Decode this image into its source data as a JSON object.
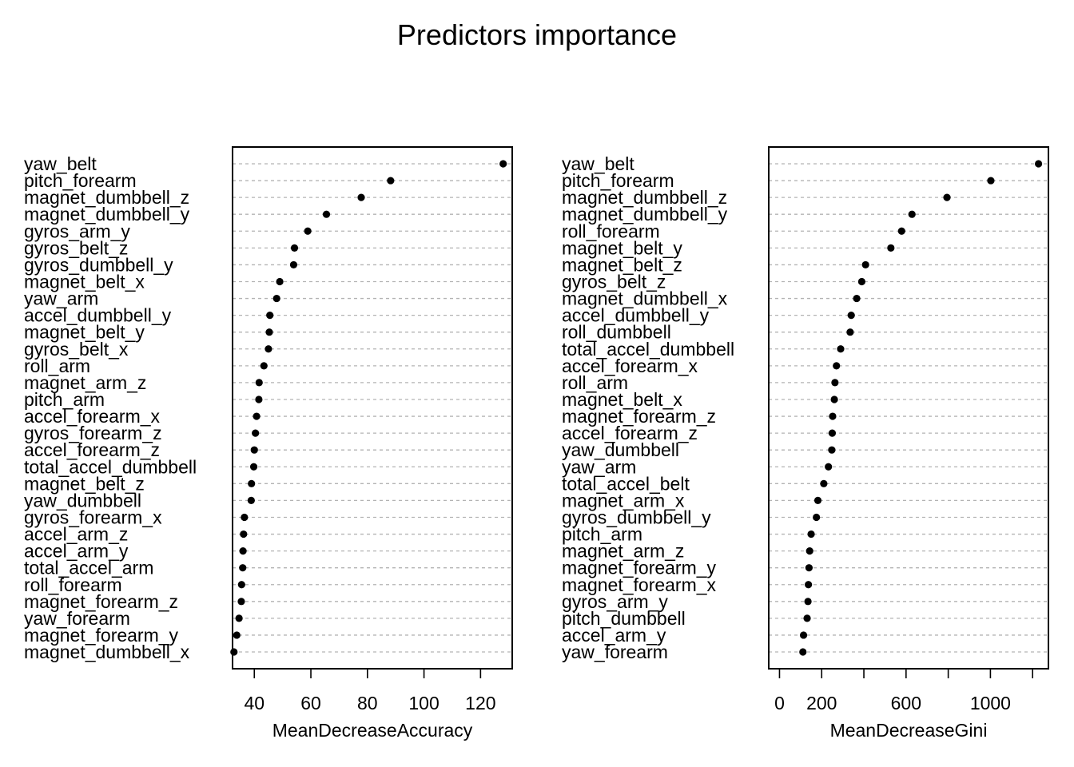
{
  "chart_data": [
    {
      "type": "dotchart",
      "title": "Predictors importance",
      "xlabel": "MeanDecreaseAccuracy",
      "ylabel": "",
      "xlim": [
        32.3,
        131.2
      ],
      "xticks": [
        40,
        60,
        80,
        100,
        120
      ],
      "xtick_labels": [
        "40",
        "60",
        "80",
        "100",
        "120"
      ],
      "grid": "dashed horizontal",
      "categories": [
        "yaw_belt",
        "pitch_forearm",
        "magnet_dumbbell_z",
        "magnet_dumbbell_y",
        "gyros_arm_y",
        "gyros_belt_z",
        "gyros_dumbbell_y",
        "magnet_belt_x",
        "yaw_arm",
        "accel_dumbbell_y",
        "magnet_belt_y",
        "gyros_belt_x",
        "roll_arm",
        "magnet_arm_z",
        "pitch_arm",
        "accel_forearm_x",
        "gyros_forearm_z",
        "accel_forearm_z",
        "total_accel_dumbbell",
        "magnet_belt_z",
        "yaw_dumbbell",
        "gyros_forearm_x",
        "accel_arm_z",
        "accel_arm_y",
        "total_accel_arm",
        "roll_forearm",
        "magnet_forearm_z",
        "yaw_forearm",
        "magnet_forearm_y",
        "magnet_dumbbell_x"
      ],
      "values": [
        128.0,
        88.2,
        77.8,
        65.5,
        58.9,
        54.2,
        53.9,
        49.0,
        47.9,
        45.5,
        45.3,
        45.0,
        43.4,
        41.7,
        41.6,
        40.8,
        40.4,
        40.0,
        39.8,
        39.0,
        38.9,
        36.5,
        36.2,
        36.0,
        35.9,
        35.5,
        35.4,
        34.6,
        33.8,
        32.8
      ]
    },
    {
      "type": "dotchart",
      "title": "",
      "xlabel": "MeanDecreaseGini",
      "ylabel": "",
      "xlim": [
        -51,
        1275
      ],
      "xticks": [
        0,
        200,
        400,
        600,
        800,
        1000,
        1200
      ],
      "xtick_labels": [
        "0",
        "200",
        "",
        "600",
        "",
        "1000",
        ""
      ],
      "grid": "dashed horizontal",
      "categories": [
        "yaw_belt",
        "pitch_forearm",
        "magnet_dumbbell_z",
        "magnet_dumbbell_y",
        "roll_forearm",
        "magnet_belt_y",
        "magnet_belt_z",
        "gyros_belt_z",
        "magnet_dumbbell_x",
        "accel_dumbbell_y",
        "roll_dumbbell",
        "total_accel_dumbbell",
        "accel_forearm_x",
        "roll_arm",
        "magnet_belt_x",
        "magnet_forearm_z",
        "accel_forearm_z",
        "yaw_dumbbell",
        "yaw_arm",
        "total_accel_belt",
        "magnet_arm_x",
        "gyros_dumbbell_y",
        "pitch_arm",
        "magnet_arm_z",
        "magnet_forearm_y",
        "magnet_forearm_x",
        "gyros_arm_y",
        "pitch_dumbbell",
        "accel_arm_y",
        "yaw_forearm"
      ],
      "values": [
        1228,
        1002,
        794,
        628,
        579,
        528,
        408,
        390,
        366,
        340,
        335,
        290,
        270,
        263,
        260,
        252,
        250,
        248,
        232,
        210,
        182,
        175,
        150,
        143,
        140,
        137,
        135,
        131,
        114,
        111
      ]
    }
  ]
}
